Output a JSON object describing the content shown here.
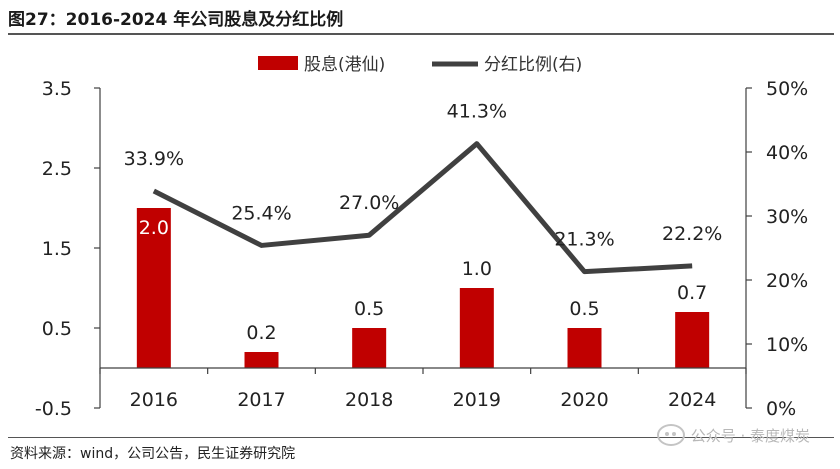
{
  "header": {
    "title": "图27：2016-2024 年公司股息及分红比例"
  },
  "footer": {
    "source": "资料来源：wind，公司公告，民生证券研究院",
    "watermark": "公众号 · 泰度煤炭"
  },
  "colors": {
    "bar": "#c00000",
    "line": "#404040",
    "axis": "#404040",
    "text": "#222222"
  },
  "chart_data": {
    "type": "bar",
    "title": "",
    "categories": [
      "2016",
      "2017",
      "2018",
      "2019",
      "2020",
      "2024"
    ],
    "series": [
      {
        "name": "股息(港仙)",
        "type": "bar",
        "axis": "left",
        "values": [
          2.0,
          0.2,
          0.5,
          1.0,
          0.5,
          0.7
        ],
        "labels": [
          "2.0",
          "0.2",
          "0.5",
          "1.0",
          "0.5",
          "0.7"
        ]
      },
      {
        "name": "分红比例(右)",
        "type": "line",
        "axis": "right",
        "values": [
          33.9,
          25.4,
          27.0,
          41.3,
          21.3,
          22.2
        ],
        "labels": [
          "33.9%",
          "25.4%",
          "27.0%",
          "41.3%",
          "21.3%",
          "22.2%"
        ]
      }
    ],
    "left_axis": {
      "min": -0.5,
      "max": 3.5,
      "ticks": [
        "3.5",
        "2.5",
        "1.5",
        "0.5",
        "-0.5"
      ],
      "tick_values": [
        3.5,
        2.5,
        1.5,
        0.5,
        -0.5
      ]
    },
    "right_axis": {
      "min": 0,
      "max": 50,
      "ticks": [
        "50%",
        "40%",
        "30%",
        "20%",
        "10%",
        "0%"
      ],
      "tick_values": [
        50,
        40,
        30,
        20,
        10,
        0
      ]
    },
    "legend": {
      "position": "top-center",
      "bar_label": "股息(港仙)",
      "line_label": "分红比例(右)"
    },
    "grid": false
  }
}
